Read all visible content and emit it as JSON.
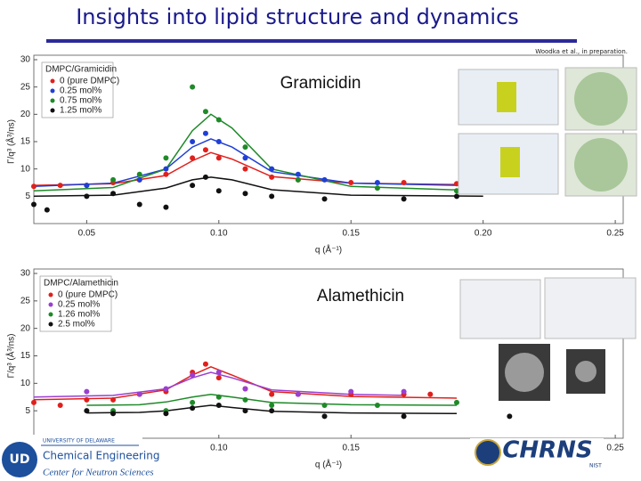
{
  "title": "Insights into lipid structure and dynamics",
  "citation": "Woodka et al., in preparation.",
  "logos": {
    "university": "UNIVERSITY OF DELAWARE",
    "department": "Chemical Engineering",
    "center": "Center for Neutron Sciences",
    "chrns": "CHRNS",
    "nist": "NIST"
  },
  "chart_data": [
    {
      "type": "scatter",
      "annotation": "Gramicidin",
      "legend_title": "DMPC/Gramicidin",
      "x_label": "q (Å⁻¹)",
      "y_label": "Γ/q³ (Å³/ns)",
      "xlim": [
        0.03,
        0.253
      ],
      "ylim": [
        0,
        30
      ],
      "xticks": [
        0.05,
        {
          "value": 0.1,
          "label": "0.10"
        },
        0.15,
        {
          "value": 0.2,
          "label": "0.20"
        },
        0.25
      ],
      "yticks": [
        5,
        10,
        15,
        20,
        25,
        30
      ],
      "series": [
        {
          "name": "0 (pure DMPC)",
          "color": "#e0201c",
          "x": [
            0.03,
            0.04,
            0.05,
            0.06,
            0.07,
            0.08,
            0.09,
            0.095,
            0.1,
            0.11,
            0.12,
            0.13,
            0.15,
            0.17,
            0.19
          ],
          "values": [
            6.8,
            7,
            7,
            7.5,
            8,
            9,
            12,
            13.5,
            12,
            10,
            8.5,
            8,
            7.5,
            7.5,
            7.3
          ],
          "fit": {
            "x": [
              0.03,
              0.06,
              0.08,
              0.09,
              0.097,
              0.105,
              0.12,
              0.15,
              0.2
            ],
            "values": [
              7,
              7.3,
              8.8,
              11.5,
              13,
              11.8,
              8.6,
              7.4,
              7.1
            ]
          }
        },
        {
          "name": "0.25 mol%",
          "color": "#1f3fd6",
          "x": [
            0.05,
            0.07,
            0.08,
            0.09,
            0.095,
            0.1,
            0.11,
            0.12,
            0.13,
            0.14,
            0.16
          ],
          "values": [
            7,
            8,
            10,
            15,
            16.5,
            15,
            12,
            10,
            9,
            8,
            7.5
          ],
          "fit": {
            "x": [
              0.03,
              0.06,
              0.08,
              0.09,
              0.097,
              0.105,
              0.12,
              0.15,
              0.2
            ],
            "values": [
              6.8,
              7.4,
              10,
              14,
              15.5,
              14,
              9.5,
              7.4,
              6.9
            ]
          }
        },
        {
          "name": "0.75 mol%",
          "color": "#1e8a28",
          "x": [
            0.06,
            0.07,
            0.08,
            0.09,
            0.095,
            0.1,
            0.11,
            0.13,
            0.16,
            0.19
          ],
          "values": [
            8,
            9,
            12,
            25,
            20.5,
            19,
            14,
            8,
            6.5,
            6
          ],
          "fit": {
            "x": [
              0.03,
              0.06,
              0.08,
              0.09,
              0.097,
              0.105,
              0.12,
              0.15,
              0.2
            ],
            "values": [
              6,
              6.6,
              10,
              17,
              20,
              17.5,
              10,
              6.8,
              6
            ]
          }
        },
        {
          "name": "1.25 mol%",
          "color": "#111111",
          "x": [
            0.03,
            0.035,
            0.05,
            0.06,
            0.07,
            0.08,
            0.09,
            0.095,
            0.1,
            0.11,
            0.12,
            0.14,
            0.17,
            0.19
          ],
          "values": [
            3.5,
            2.5,
            5,
            5.5,
            3.5,
            3,
            7,
            8.5,
            6,
            5.5,
            5,
            4.5,
            4.5,
            5
          ],
          "fit": {
            "x": [
              0.03,
              0.06,
              0.08,
              0.09,
              0.097,
              0.105,
              0.12,
              0.15,
              0.2
            ],
            "values": [
              5,
              5.2,
              6.5,
              8,
              8.5,
              8,
              6.2,
              5.2,
              5
            ]
          }
        }
      ]
    },
    {
      "type": "scatter",
      "annotation": "Alamethicin",
      "legend_title": "DMPC/Alamethicin",
      "x_label": "q (Å⁻¹)",
      "y_label": "Γ/q³ (Å³/ns)",
      "xlim": [
        0.03,
        0.253
      ],
      "ylim": [
        0,
        30
      ],
      "xticks": [
        {
          "value": 0.1,
          "label": "0.10"
        },
        0.15,
        0.25
      ],
      "yticks": [
        5,
        10,
        15,
        20,
        25,
        30
      ],
      "series": [
        {
          "name": "0 (pure DMPC)",
          "color": "#e0201c",
          "x": [
            0.03,
            0.04,
            0.05,
            0.06,
            0.07,
            0.08,
            0.09,
            0.095,
            0.1,
            0.11,
            0.12,
            0.13,
            0.15,
            0.17,
            0.18
          ],
          "values": [
            6.5,
            6,
            7,
            7,
            8,
            8.5,
            12,
            13.5,
            11,
            9,
            8,
            8,
            8,
            8,
            8
          ],
          "fit": {
            "x": [
              0.03,
              0.06,
              0.08,
              0.09,
              0.097,
              0.105,
              0.12,
              0.15,
              0.19
            ],
            "values": [
              7,
              7.3,
              8.8,
              11.5,
              13,
              11.5,
              8.5,
              7.6,
              7.3
            ]
          }
        },
        {
          "name": "0.25 mol%",
          "color": "#9a3fd0",
          "x": [
            0.05,
            0.07,
            0.08,
            0.09,
            0.1,
            0.11,
            0.13,
            0.15,
            0.17
          ],
          "values": [
            8.5,
            8,
            9,
            11.5,
            12,
            9,
            8,
            8.5,
            8.5
          ],
          "fit": {
            "x": [
              0.03,
              0.06,
              0.08,
              0.09,
              0.097,
              0.105,
              0.12,
              0.15,
              0.17
            ],
            "values": [
              7.5,
              7.8,
              9,
              11,
              12,
              11,
              8.8,
              8,
              7.8
            ]
          }
        },
        {
          "name": "1.26 mol%",
          "color": "#1e8a28",
          "x": [
            0.06,
            0.08,
            0.09,
            0.1,
            0.11,
            0.12,
            0.14,
            0.16,
            0.19
          ],
          "values": [
            5,
            5,
            6.5,
            7.5,
            7,
            6,
            6,
            6,
            6.5
          ],
          "fit": {
            "x": [
              0.05,
              0.07,
              0.08,
              0.09,
              0.097,
              0.105,
              0.12,
              0.15,
              0.19
            ],
            "values": [
              6,
              6.1,
              6.6,
              7.5,
              8,
              7.5,
              6.5,
              6.1,
              6
            ]
          }
        },
        {
          "name": "2.5 mol%",
          "color": "#111111",
          "x": [
            0.05,
            0.06,
            0.08,
            0.09,
            0.1,
            0.11,
            0.12,
            0.14,
            0.17,
            0.21
          ],
          "values": [
            5,
            4.5,
            4.5,
            5.5,
            6,
            5,
            5,
            4,
            4,
            4
          ],
          "fit": {
            "x": [
              0.05,
              0.07,
              0.08,
              0.09,
              0.097,
              0.105,
              0.12,
              0.15,
              0.19
            ],
            "values": [
              4.6,
              4.7,
              5,
              5.6,
              6,
              5.6,
              4.9,
              4.6,
              4.5
            ]
          }
        }
      ]
    }
  ]
}
